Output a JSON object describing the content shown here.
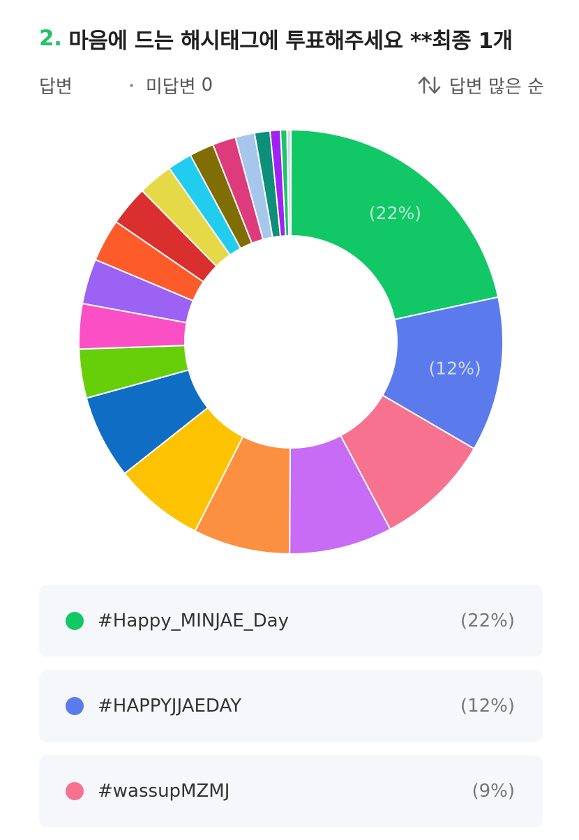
{
  "question": {
    "number": "2.",
    "title": "마음에 드는 해시태그에 투표해주세요 **최종 1개"
  },
  "meta": {
    "answered_label": "답변",
    "unanswered_label": "미답변",
    "unanswered_count": "0",
    "sort_label": "답변 많은 순",
    "sort_icon": "sort-arrows-icon"
  },
  "chart_data": {
    "type": "donut",
    "slices": [
      {
        "label": "#Happy_MINJAE_Day",
        "pct_text": "(22%)",
        "value": 22,
        "color": "#12c766",
        "show_label": true
      },
      {
        "label": "#HAPPYJJAEDAY",
        "pct_text": "(12%)",
        "value": 12,
        "color": "#5b7bed",
        "show_label": true
      },
      {
        "label": "#wassupMZMJ",
        "pct_text": "(9%)",
        "value": 9,
        "color": "#f7728f"
      },
      {
        "label": "",
        "value": 8,
        "color": "#c86bf5"
      },
      {
        "label": "",
        "value": 7.5,
        "color": "#fb9041"
      },
      {
        "label": "",
        "value": 7,
        "color": "#fdc302"
      },
      {
        "label": "",
        "value": 6.5,
        "color": "#0f6dc4"
      },
      {
        "label": "",
        "value": 3.8,
        "color": "#66cf0a"
      },
      {
        "label": "",
        "value": 3.5,
        "color": "#fb4fc6"
      },
      {
        "label": "",
        "value": 3.5,
        "color": "#9b62f3"
      },
      {
        "label": "",
        "value": 3.3,
        "color": "#fe5b2a"
      },
      {
        "label": "",
        "value": 3.1,
        "color": "#d92f2f"
      },
      {
        "label": "",
        "value": 2.7,
        "color": "#e5d948"
      },
      {
        "label": "",
        "value": 1.9,
        "color": "#22ccef"
      },
      {
        "label": "",
        "value": 1.9,
        "color": "#806d03"
      },
      {
        "label": "",
        "value": 1.8,
        "color": "#dd3b7c"
      },
      {
        "label": "",
        "value": 1.5,
        "color": "#a6c6eb"
      },
      {
        "label": "",
        "value": 1.2,
        "color": "#0e8f7a"
      },
      {
        "label": "",
        "value": 0.8,
        "color": "#a022f5"
      },
      {
        "label": "",
        "value": 0.5,
        "color": "#18c76a"
      },
      {
        "label": "",
        "value": 0.3,
        "color": "#d6dbe6"
      }
    ]
  },
  "legend": [
    {
      "label": "#Happy_MINJAE_Day",
      "pct": "(22%)",
      "color": "#12c766"
    },
    {
      "label": "#HAPPYJJAEDAY",
      "pct": "(12%)",
      "color": "#5b7bed"
    },
    {
      "label": "#wassupMZMJ",
      "pct": "(9%)",
      "color": "#f7728f"
    }
  ]
}
